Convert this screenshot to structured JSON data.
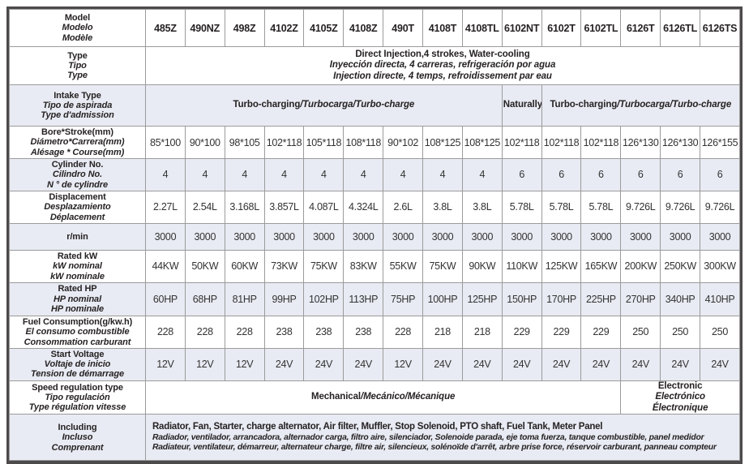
{
  "colors": {
    "page_bg": "#ffffff",
    "shaded_row_bg": "#e8ebf3",
    "border_outer": "#4d4a4b",
    "border_inner": "#9b9b9b",
    "text": "#262223"
  },
  "rows": [
    {
      "name": "model",
      "shaded": false,
      "header": true,
      "label": [
        "Model",
        "Modelo",
        "Modèle"
      ],
      "values": [
        "485Z",
        "490NZ",
        "498Z",
        "4102Z",
        "4105Z",
        "4108Z",
        "490T",
        "4108T",
        "4108TL",
        "6102NT",
        "6102T",
        "6102TL",
        "6126T",
        "6126TL",
        "6126TS"
      ]
    },
    {
      "name": "type",
      "shaded": false,
      "label": [
        "Type",
        "Tipo",
        "Type"
      ],
      "cells": [
        {
          "span": 15,
          "lines": [
            [
              {
                "t": "Direct Injection,4 strokes, Water-cooling",
                "it": false
              }
            ],
            [
              {
                "t": "Inyección directa, 4 carreras, refrigeración por agua",
                "it": true
              }
            ],
            [
              {
                "t": "Injection directe, 4 temps, refroidissement par eau",
                "it": true
              }
            ]
          ]
        }
      ]
    },
    {
      "name": "intake",
      "shaded": true,
      "label": [
        "Intake Type",
        "Tipo de aspirada",
        "Type d'admission"
      ],
      "cells": [
        {
          "span": 9,
          "lines": [
            [
              {
                "t": "Turbo-charging",
                "it": false
              },
              {
                "t": "/Turbocarga/Turbo-charge",
                "it": true
              }
            ]
          ]
        },
        {
          "span": 1,
          "lines": [
            [
              {
                "t": "Naturally",
                "it": false
              }
            ]
          ]
        },
        {
          "span": 5,
          "lines": [
            [
              {
                "t": "Turbo-charging",
                "it": false
              },
              {
                "t": "/Turbocarga/Turbo-charge",
                "it": true
              }
            ]
          ]
        }
      ]
    },
    {
      "name": "bore-stroke",
      "shaded": false,
      "label": [
        "Bore*Stroke(mm)",
        "Diámetro*Carrera(mm)",
        "Alésage * Course(mm)"
      ],
      "values": [
        "85*100",
        "90*100",
        "98*105",
        "102*118",
        "105*118",
        "108*118",
        "90*102",
        "108*125",
        "108*125",
        "102*118",
        "102*118",
        "102*118",
        "126*130",
        "126*130",
        "126*155"
      ]
    },
    {
      "name": "cylinder",
      "shaded": true,
      "label": [
        "Cylinder No.",
        "Cilindro No.",
        "N ° de cylindre"
      ],
      "values": [
        "4",
        "4",
        "4",
        "4",
        "4",
        "4",
        "4",
        "4",
        "4",
        "6",
        "6",
        "6",
        "6",
        "6",
        "6"
      ]
    },
    {
      "name": "displacement",
      "shaded": false,
      "label": [
        "Displacement",
        "Desplazamiento",
        "Déplacement"
      ],
      "values": [
        "2.27L",
        "2.54L",
        "3.168L",
        "3.857L",
        "4.087L",
        "4.324L",
        "2.6L",
        "3.8L",
        "3.8L",
        "5.78L",
        "5.78L",
        "5.78L",
        "9.726L",
        "9.726L",
        "9.726L"
      ]
    },
    {
      "name": "rmin",
      "shaded": true,
      "label": [
        "r/min"
      ],
      "values": [
        "3000",
        "3000",
        "3000",
        "3000",
        "3000",
        "3000",
        "3000",
        "3000",
        "3000",
        "3000",
        "3000",
        "3000",
        "3000",
        "3000",
        "3000"
      ]
    },
    {
      "name": "rated-kw",
      "shaded": false,
      "label": [
        "Rated kW",
        "kW nominal",
        "kW nominale"
      ],
      "values": [
        "44KW",
        "50KW",
        "60KW",
        "73KW",
        "75KW",
        "83KW",
        "55KW",
        "75KW",
        "90KW",
        "110KW",
        "125KW",
        "165KW",
        "200KW",
        "250KW",
        "300KW"
      ]
    },
    {
      "name": "rated-hp",
      "shaded": true,
      "label": [
        "Rated HP",
        "HP nominal",
        "HP nominale"
      ],
      "values": [
        "60HP",
        "68HP",
        "81HP",
        "99HP",
        "102HP",
        "113HP",
        "75HP",
        "100HP",
        "125HP",
        "150HP",
        "170HP",
        "225HP",
        "270HP",
        "340HP",
        "410HP"
      ]
    },
    {
      "name": "fuel",
      "shaded": false,
      "label": [
        "Fuel Consumption(g/kw.h)",
        "El consumo combustible",
        "Consommation carburant"
      ],
      "values": [
        "228",
        "228",
        "228",
        "238",
        "238",
        "238",
        "228",
        "218",
        "218",
        "229",
        "229",
        "229",
        "250",
        "250",
        "250"
      ]
    },
    {
      "name": "voltage",
      "shaded": true,
      "label": [
        "Start Voltage",
        "Voltaje de inicio",
        "Tension de démarrage"
      ],
      "values": [
        "12V",
        "12V",
        "12V",
        "24V",
        "24V",
        "24V",
        "12V",
        "24V",
        "24V",
        "24V",
        "24V",
        "24V",
        "24V",
        "24V",
        "24V"
      ]
    },
    {
      "name": "speed-regulation",
      "shaded": false,
      "label": [
        "Speed regulation type",
        "Tipo regulación",
        "Type régulation vitesse"
      ],
      "cells": [
        {
          "span": 12,
          "lines": [
            [
              {
                "t": "Mechanical",
                "it": false
              },
              {
                "t": "/Mecánico/Mécanique",
                "it": true
              }
            ]
          ]
        },
        {
          "span": 3,
          "lines": [
            [
              {
                "t": "Electronic",
                "it": false
              }
            ],
            [
              {
                "t": "Electrónico",
                "it": true
              }
            ],
            [
              {
                "t": "Électronique",
                "it": true
              }
            ]
          ]
        }
      ]
    },
    {
      "name": "including",
      "shaded": true,
      "label": [
        "Including",
        "Incluso",
        "Comprenant"
      ],
      "cells": [
        {
          "span": 15,
          "align": "left",
          "lines": [
            [
              {
                "t": "Radiator, Fan, Starter, charge alternator, Air filter, Muffler, Stop Solenoid, PTO shaft, Fuel Tank, Meter Panel",
                "it": false
              }
            ],
            [
              {
                "t": "Radiador, ventilador, arrancadora, alternador carga, filtro aire, silenciador, Solenoide parada, eje toma fuerza, tanque combustible, panel medidor",
                "it": true
              }
            ],
            [
              {
                "t": "Radiateur, ventilateur, démarreur, alternateur charge, filtre air, silencieux, solénoïde d'arrêt, arbre prise force, réservoir carburant, panneau compteur",
                "it": true
              }
            ]
          ]
        }
      ]
    }
  ]
}
